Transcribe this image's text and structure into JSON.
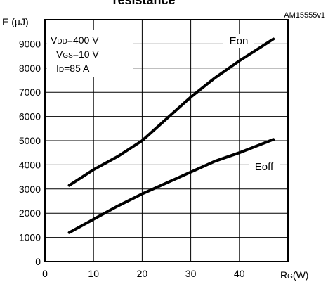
{
  "chart_data": {
    "type": "line",
    "title": "resistance",
    "figure_code": "AM15555v1",
    "ylabel": "E (µJ)",
    "xlabel_main": "R",
    "xlabel_sub": "G",
    "xlabel_unit": "(W)",
    "xlim": [
      0,
      50
    ],
    "ylim": [
      0,
      10000
    ],
    "xticks": [
      "0",
      "10",
      "20",
      "30",
      "40"
    ],
    "yticks": [
      "0",
      "1000",
      "2000",
      "3000",
      "4000",
      "5000",
      "6000",
      "7000",
      "8000",
      "9000"
    ],
    "grid": true,
    "conditions": [
      {
        "main": "V",
        "sub": "DD",
        "rest": "=400 V"
      },
      {
        "main": "V",
        "sub": "GS",
        "rest": "=10 V"
      },
      {
        "main": "I",
        "sub": "D",
        "rest": "=85 A"
      }
    ],
    "series": [
      {
        "name": "Eon",
        "x": [
          5,
          10,
          15,
          20,
          25,
          30,
          35,
          40,
          47
        ],
        "y": [
          3150,
          3800,
          4350,
          5000,
          5900,
          6800,
          7600,
          8300,
          9200
        ]
      },
      {
        "name": "Eoff",
        "x": [
          5,
          10,
          15,
          20,
          25,
          30,
          35,
          40,
          47
        ],
        "y": [
          1200,
          1750,
          2300,
          2800,
          3250,
          3700,
          4150,
          4500,
          5050
        ]
      }
    ]
  }
}
